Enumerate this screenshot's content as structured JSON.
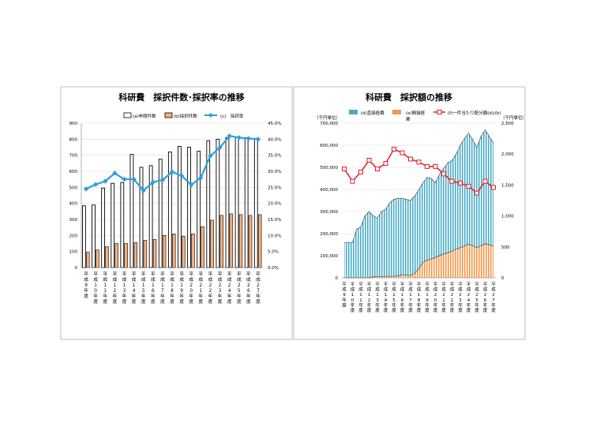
{
  "chart_data": [
    {
      "type": "bar",
      "title": "科研費　採択件数･採択率の推移",
      "categories": [
        "平成9年度",
        "平成10年度",
        "平成11年度",
        "平成12年度",
        "平成13年度",
        "平成14年度",
        "平成15年度",
        "平成16年度",
        "平成17年度",
        "平成18年度",
        "平成19年度",
        "平成20年度",
        "平成21年度",
        "平成22年度",
        "平成23年度",
        "平成24年度",
        "平成25年度",
        "平成26年度",
        "平成27年度"
      ],
      "tick_labels": [
        "平\n成\n9\n年\n度",
        "平\n成\n1\n0\n年\n度",
        "平\n成\n1\n1\n年\n度",
        "平\n成\n1\n2\n年\n度",
        "平\n成\n1\n3\n年\n度",
        "平\n成\n1\n4\n年\n度",
        "平\n成\n1\n5\n年\n度",
        "平\n成\n1\n6\n年\n度",
        "平\n成\n1\n7\n年\n度",
        "平\n成\n1\n8\n年\n度",
        "平\n成\n1\n9\n年\n度",
        "平\n成\n2\n0\n年\n度",
        "平\n成\n2\n1\n年\n度",
        "平\n成\n2\n2\n年\n度",
        "平\n成\n2\n3\n年\n度",
        "平\n成\n2\n4\n年\n度",
        "平\n成\n2\n5\n年\n度",
        "平\n成\n2\n6\n年\n度",
        "平\n成\n2\n7\n年\n度"
      ],
      "series": [
        {
          "name": "(a)申請件数",
          "type": "bar",
          "color": "#ffffff",
          "stroke": "#000000",
          "axis": "left",
          "values": [
            385,
            390,
            495,
            525,
            530,
            705,
            625,
            635,
            675,
            720,
            755,
            750,
            725,
            790,
            800,
            810,
            810,
            810,
            805
          ]
        },
        {
          "name": "(b)採択件数",
          "type": "bar",
          "color": "#f4b183",
          "stroke": "#000000",
          "axis": "left",
          "values": [
            95,
            110,
            130,
            150,
            150,
            155,
            170,
            175,
            200,
            210,
            195,
            210,
            255,
            295,
            325,
            335,
            330,
            325,
            330
          ]
        },
        {
          "name": "(c)　採択率",
          "type": "line",
          "color": "#2e9fdb",
          "axis": "right",
          "values": [
            24.5,
            25.9,
            26.9,
            29.4,
            27.5,
            27.5,
            24.0,
            26.6,
            27.3,
            29.8,
            28.6,
            25.8,
            28.0,
            34.8,
            37.4,
            41.0,
            40.5,
            40.2,
            40.0
          ]
        }
      ],
      "ylim": [
        0,
        900
      ],
      "yticks": [
        "0",
        "100",
        "200",
        "300",
        "400",
        "500",
        "600",
        "700",
        "800",
        "900"
      ],
      "y2lim": [
        0,
        45
      ],
      "y2ticks": [
        "0.0%",
        "5.0%",
        "10.0%",
        "15.0%",
        "20.0%",
        "25.0%",
        "30.0%",
        "35.0%",
        "40.0%",
        "45.0%"
      ],
      "legend": "top"
    },
    {
      "type": "area",
      "title": "科研費　採択額の推移",
      "unit_left": "（千円単位）",
      "unit_right": "（千円単位）",
      "categories": [
        "平成9年度",
        "平成10年度",
        "平成11年度",
        "平成12年度",
        "平成13年度",
        "平成14年度",
        "平成15年度",
        "平成16年度",
        "平成17年度",
        "平成18年度",
        "平成19年度",
        "平成20年度",
        "平成21年度",
        "平成22年度",
        "平成23年度",
        "平成24年度",
        "平成25年度",
        "平成26年度",
        "平成27年度"
      ],
      "tick_labels": [
        "平\n成\n9\n年\n度",
        "平\n成\n1\n0\n年\n度",
        "平\n成\n1\n1\n年\n度",
        "平\n成\n1\n2\n年\n度",
        "平\n成\n1\n3\n年\n度",
        "平\n成\n1\n4\n年\n度",
        "平\n成\n1\n5\n年\n度",
        "平\n成\n1\n6\n年\n度",
        "平\n成\n1\n7\n年\n度",
        "平\n成\n1\n8\n年\n度",
        "平\n成\n1\n9\n年\n度",
        "平\n成\n2\n0\n年\n度",
        "平\n成\n2\n1\n年\n度",
        "平\n成\n2\n2\n年\n度",
        "平\n成\n2\n3\n年\n度",
        "平\n成\n2\n4\n年\n度",
        "平\n成\n2\n5\n年\n度",
        "平\n成\n2\n6\n年\n度",
        "平\n成\n2\n7\n年\n度"
      ],
      "x": [
        9,
        9.5,
        10,
        10.5,
        11,
        11.5,
        12,
        12.5,
        13,
        13.5,
        14,
        14.5,
        15,
        15.5,
        16,
        16.5,
        17,
        17.5,
        18,
        18.5,
        19,
        19.5,
        20,
        20.5,
        21,
        21.5,
        22,
        22.5,
        23,
        23.5,
        24,
        24.5,
        25,
        25.5,
        26,
        26.5,
        27
      ],
      "series": [
        {
          "name": "(d)直接経費",
          "type": "area",
          "color": "#4bacc6",
          "axis": "left",
          "values": [
            160000,
            160000,
            160000,
            220000,
            230000,
            280000,
            300000,
            280000,
            270000,
            300000,
            310000,
            340000,
            355000,
            360000,
            360000,
            355000,
            350000,
            370000,
            400000,
            430000,
            455000,
            450000,
            430000,
            470000,
            495000,
            520000,
            530000,
            560000,
            600000,
            630000,
            655000,
            625000,
            590000,
            640000,
            670000,
            640000,
            610000
          ]
        },
        {
          "name": "(e)間接経費",
          "type": "area",
          "color": "#f79646",
          "axis": "left",
          "values": [
            0,
            0,
            0,
            0,
            0,
            0,
            2000,
            4000,
            6000,
            6000,
            6000,
            7000,
            7000,
            8000,
            15000,
            12000,
            10000,
            20000,
            40000,
            70000,
            80000,
            85000,
            92000,
            100000,
            108000,
            113000,
            120000,
            130000,
            136000,
            143000,
            152000,
            145000,
            136000,
            145000,
            154000,
            150000,
            142000
          ]
        },
        {
          "name": "(f)一件当たり配分額(d)/(b)",
          "type": "line",
          "color": "#e11c24",
          "axis": "right",
          "x": [
            9,
            10,
            11,
            12,
            13,
            14,
            15,
            16,
            17,
            18,
            19,
            20,
            21,
            22,
            23,
            24,
            25,
            26,
            27
          ],
          "values": [
            1760,
            1560,
            1710,
            1900,
            1760,
            1850,
            2080,
            2020,
            1920,
            1870,
            1800,
            1800,
            1680,
            1560,
            1530,
            1480,
            1370,
            1560,
            1460
          ]
        }
      ],
      "ylim": [
        0,
        700000
      ],
      "yticks": [
        "0",
        "100,000",
        "200,000",
        "300,000",
        "400,000",
        "500,000",
        "600,000",
        "700,000"
      ],
      "y2lim": [
        0,
        2500
      ],
      "y2ticks": [
        "0",
        "500",
        "1,000",
        "1,500",
        "2,000",
        "2,500"
      ],
      "legend": "top"
    }
  ]
}
